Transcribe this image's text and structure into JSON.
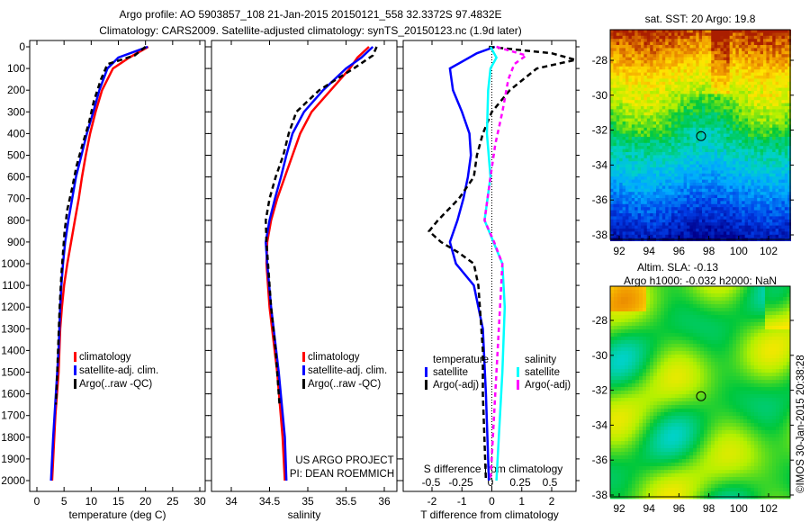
{
  "title_line1": "Argo profile: AO 5903857_108 21-Jan-2015 20150121_558 32.3372S 97.4832E",
  "title_line2": "Climatology: CARS2009. Satellite-adjusted climatology: synTS_20150123.nc (1.9d later)",
  "project_line1": "US ARGO PROJECT",
  "project_line2": "PI: DEAN ROEMMICH",
  "timestamp_text": "©IMOS 30-Jan-2015 20:38:28",
  "colors": {
    "climatology": "#ff0000",
    "satellite": "#0000ff",
    "argo": "#000000",
    "sal_satellite": "#00ffff",
    "sal_argo": "#ff00ff"
  },
  "chart_data": [
    {
      "type": "line",
      "xlabel": "temperature (deg C)",
      "ylabel": "depth",
      "xlim": [
        -1,
        31
      ],
      "ylim": [
        2080,
        -30
      ],
      "xticks": [
        0,
        5,
        10,
        15,
        20,
        25,
        30
      ],
      "yticks": [
        0,
        100,
        200,
        300,
        400,
        500,
        600,
        700,
        800,
        900,
        1000,
        1100,
        1200,
        1300,
        1400,
        1500,
        1600,
        1700,
        1800,
        1900,
        2000
      ],
      "legend": [
        "climatology",
        "satellite-adj. clim.",
        "Argo(..raw -QC)"
      ],
      "series": [
        {
          "name": "climatology",
          "depth": [
            0,
            50,
            100,
            200,
            300,
            400,
            500,
            600,
            700,
            800,
            900,
            1000,
            1100,
            1200,
            1300,
            1500,
            1700,
            1900,
            2000
          ],
          "values": [
            20.5,
            17,
            14,
            12,
            10.8,
            9.8,
            9,
            8.3,
            7.7,
            7,
            6.3,
            5.6,
            5,
            4.6,
            4.3,
            4,
            3.4,
            3,
            2.8
          ]
        },
        {
          "name": "satellite-adj. clim.",
          "depth": [
            0,
            50,
            100,
            200,
            300,
            400,
            500,
            600,
            700,
            800,
            900,
            1000,
            1100,
            1200,
            1400,
            1600,
            1800,
            2000
          ],
          "values": [
            20.4,
            15,
            13,
            11.5,
            10.4,
            9.2,
            8.2,
            7.2,
            6.5,
            5.8,
            5.2,
            4.8,
            4.5,
            4.3,
            4,
            3.5,
            3,
            2.6
          ]
        },
        {
          "name": "Argo(..raw -QC)",
          "depth": [
            0,
            40,
            80,
            150,
            250,
            350,
            450,
            550,
            650,
            750,
            850,
            950,
            1050,
            1200,
            1400,
            1600,
            1650
          ],
          "values": [
            20,
            18,
            13,
            11.8,
            10.5,
            9.6,
            8.4,
            7.3,
            6.5,
            5.6,
            5.1,
            4.8,
            4.5,
            4.2,
            3.9,
            3.6,
            3.5
          ]
        }
      ]
    },
    {
      "type": "line",
      "xlabel": "salinity",
      "xlim": [
        33.7,
        36.1
      ],
      "ylim": [
        2080,
        -30
      ],
      "xticks": [
        34,
        34.5,
        35,
        35.5,
        36
      ],
      "legend": [
        "climatology",
        "satellite-adj. clim.",
        "Argo(..raw -QC)"
      ],
      "series": [
        {
          "name": "climatology",
          "depth": [
            0,
            50,
            100,
            200,
            300,
            400,
            500,
            600,
            700,
            800,
            900,
            1000,
            1200,
            1500,
            1800,
            2000
          ],
          "values": [
            35.8,
            35.65,
            35.55,
            35.3,
            35.05,
            34.9,
            34.8,
            34.7,
            34.6,
            34.52,
            34.47,
            34.46,
            34.5,
            34.6,
            34.67,
            34.7
          ]
        },
        {
          "name": "satellite-adj. clim.",
          "depth": [
            0,
            50,
            100,
            200,
            300,
            400,
            500,
            600,
            700,
            800,
            900,
            1000,
            1200,
            1500,
            1800,
            2000
          ],
          "values": [
            35.85,
            35.7,
            35.5,
            35.2,
            34.95,
            34.8,
            34.72,
            34.65,
            34.57,
            34.5,
            34.45,
            34.47,
            34.52,
            34.62,
            34.7,
            34.72
          ]
        },
        {
          "name": "Argo(..raw -QC)",
          "depth": [
            0,
            40,
            100,
            200,
            300,
            400,
            500,
            600,
            700,
            800,
            900,
            1000,
            1200,
            1400,
            1600,
            1650
          ],
          "values": [
            35.9,
            35.85,
            35.6,
            35.15,
            34.85,
            34.75,
            34.68,
            34.58,
            34.5,
            34.45,
            34.46,
            34.48,
            34.52,
            34.58,
            34.62,
            34.63
          ]
        }
      ]
    },
    {
      "type": "line",
      "xlabel": "T difference from climatology",
      "xlabel2": "S difference from climatology",
      "xlim": [
        -3,
        3
      ],
      "slim": [
        -0.9,
        0.9
      ],
      "ylim": [
        2080,
        -30
      ],
      "xticks": [
        -2,
        -1,
        0,
        1,
        2
      ],
      "sticks": [
        -0.5,
        -0.25,
        0,
        0.25,
        0.5
      ],
      "sticklabels": [
        "-0.5",
        "-0.25",
        "0",
        "0.25",
        "0.5"
      ],
      "legend_temperature_title": "temperature",
      "legend_salinity_title": "salinity",
      "legend": [
        "satellite",
        "Argo(-adj)",
        "satellite",
        "Argo(-adj)"
      ],
      "series": [
        {
          "name": "T satellite",
          "depth": [
            0,
            30,
            100,
            200,
            300,
            400,
            500,
            600,
            700,
            800,
            900,
            1000,
            1100,
            1300,
            1600,
            2000
          ],
          "values": [
            0.1,
            -0.5,
            -1.4,
            -1.3,
            -1.0,
            -0.75,
            -0.7,
            -0.8,
            -0.95,
            -1.15,
            -1.4,
            -1.2,
            -0.6,
            -0.3,
            -0.2,
            -0.1
          ]
        },
        {
          "name": "T Argo(-adj)",
          "depth": [
            0,
            30,
            60,
            100,
            200,
            300,
            400,
            500,
            600,
            700,
            800,
            850,
            900,
            950,
            1000,
            1100,
            1200,
            1400,
            1600,
            2000
          ],
          "values": [
            -0.1,
            2.0,
            2.8,
            1.5,
            0.6,
            0.0,
            -0.3,
            -0.5,
            -0.6,
            -1.1,
            -1.8,
            -2.1,
            -1.7,
            -1.1,
            -0.6,
            -0.45,
            -0.4,
            -0.3,
            -0.3,
            -0.2
          ]
        },
        {
          "name": "S satellite",
          "depth": [
            0,
            50,
            100,
            200,
            400,
            600,
            800,
            1000,
            1200,
            1500,
            2000
          ],
          "values": [
            0.0,
            0.05,
            0.0,
            -0.02,
            -0.03,
            0.0,
            -0.05,
            0.1,
            0.12,
            0.1,
            0.05
          ]
        },
        {
          "name": "S Argo(-adj)",
          "depth": [
            0,
            40,
            80,
            150,
            300,
            450,
            600,
            800,
            900,
            1000,
            1200,
            1500,
            2000
          ],
          "values": [
            0.05,
            0.3,
            0.2,
            0.15,
            0.1,
            0.04,
            0.0,
            -0.05,
            0.03,
            0.1,
            0.08,
            0.05,
            0.0
          ]
        }
      ]
    },
    {
      "type": "heatmap",
      "title": "sat. SST: 20 Argo: 19.8",
      "xticks": [
        92,
        94,
        96,
        98,
        100,
        102
      ],
      "yticks": [
        -28,
        -30,
        -32,
        -34,
        -36,
        -38
      ],
      "xlim": [
        91.5,
        103.6
      ],
      "ylim": [
        -26.6,
        -38.3
      ],
      "marker": {
        "lon": 97.48,
        "lat": -32.34
      }
    },
    {
      "type": "heatmap",
      "title_line1": "Altim. SLA: -0.13",
      "title_line2": "Argo h1000: -0.032 h2000: NaN",
      "xticks": [
        92,
        94,
        96,
        98,
        100,
        102
      ],
      "yticks": [
        -28,
        -30,
        -32,
        -34,
        -36,
        -38
      ],
      "xlim": [
        91.5,
        103.6
      ],
      "ylim": [
        -26.4,
        -38.2
      ],
      "marker": {
        "lon": 97.48,
        "lat": -32.34
      }
    }
  ]
}
